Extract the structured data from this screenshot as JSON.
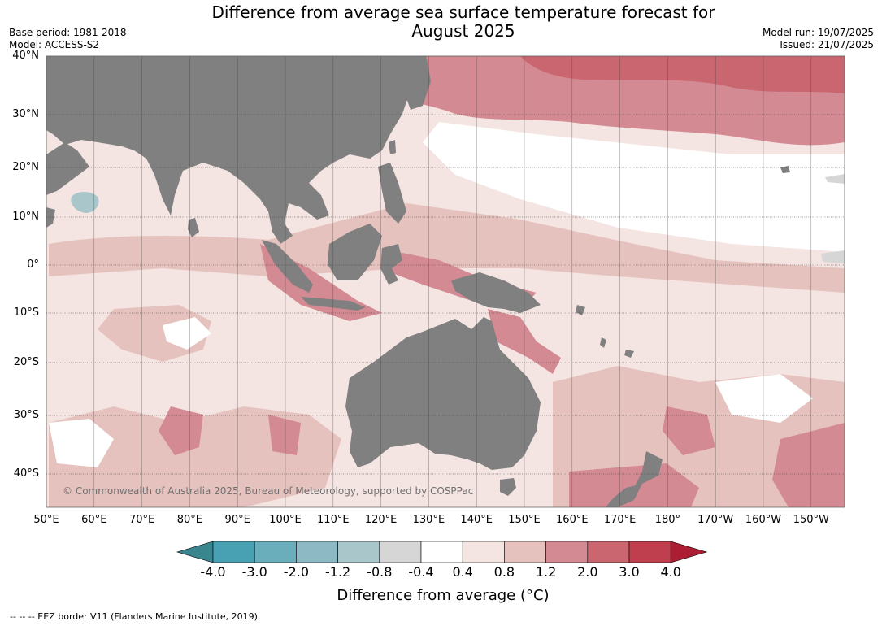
{
  "header": {
    "title_line1": "Difference from average sea surface temperature forecast for",
    "title_line2": "August 2025",
    "base_period": "Base period: 1981-2018",
    "model": "Model: ACCESS-S2",
    "model_run": "Model run: 19/07/2025",
    "issued": "Issued: 21/07/2025"
  },
  "axes": {
    "lat_labels": [
      "40°N",
      "30°N",
      "20°N",
      "10°N",
      "0°",
      "10°S",
      "20°S",
      "30°S",
      "40°S"
    ],
    "lon_labels": [
      "50°E",
      "60°E",
      "70°E",
      "80°E",
      "90°E",
      "100°E",
      "110°E",
      "120°E",
      "130°E",
      "140°E",
      "150°E",
      "160°E",
      "170°E",
      "180°",
      "170°W",
      "160°W",
      "150°W"
    ]
  },
  "colorbar": {
    "labels": [
      "-4.0",
      "-3.0",
      "-2.0",
      "-1.2",
      "-0.8",
      "-0.4",
      "0.4",
      "0.8",
      "1.2",
      "2.0",
      "3.0",
      "4.0"
    ],
    "colors": [
      "#3b858f",
      "#48a1b3",
      "#6aaebc",
      "#8db9c5",
      "#a9c6cb",
      "#d6d6d6",
      "#ffffff",
      "#f4e4e2",
      "#e6c2be",
      "#d48a93",
      "#c96670",
      "#bf3f4f",
      "#ad1e35"
    ],
    "title": "Difference from average (°C)"
  },
  "legend": {
    "footnote": "--  --  -- EEZ border V11 (Flanders Marine Institute, 2019)."
  },
  "copyright": "© Commonwealth of Australia 2025, Bureau of Meteorology, supported by COSPPac",
  "colors": {
    "land": "#808080",
    "grid": "#3a3a3a"
  }
}
